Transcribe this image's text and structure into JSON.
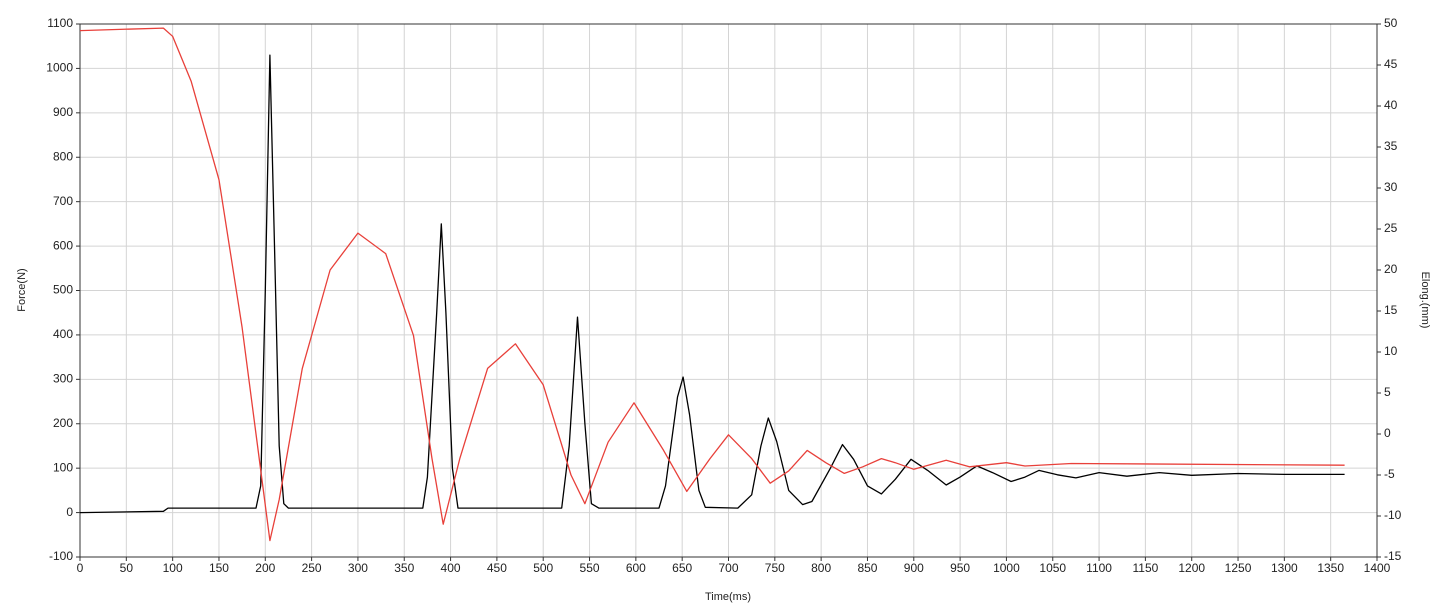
{
  "chart_data": {
    "type": "line",
    "x_label": "Time(ms)",
    "y_label": "Force(N)",
    "y2_label": "Elong.(mm)",
    "xlim": [
      0,
      1400
    ],
    "xticks": [
      0,
      50,
      100,
      150,
      200,
      250,
      300,
      350,
      400,
      450,
      500,
      550,
      600,
      650,
      700,
      750,
      800,
      850,
      900,
      950,
      1000,
      1050,
      1100,
      1150,
      1200,
      1250,
      1300,
      1350,
      1400
    ],
    "ylim": [
      -100,
      1100
    ],
    "yticks": [
      -100,
      0,
      100,
      200,
      300,
      400,
      500,
      600,
      700,
      800,
      900,
      1000,
      1100
    ],
    "y2lim": [
      -15,
      50
    ],
    "y2ticks": [
      -15,
      -10,
      -5,
      0,
      5,
      10,
      15,
      20,
      25,
      30,
      35,
      40,
      45,
      50
    ],
    "grid": true,
    "series": [
      {
        "color": "#000000",
        "x": [
          0,
          90,
          95,
          190,
          195,
          200,
          205,
          210,
          215,
          220,
          225,
          370,
          375,
          385,
          390,
          395,
          402,
          408,
          520,
          528,
          537,
          545,
          552,
          560,
          625,
          632,
          645,
          651,
          658,
          668,
          675,
          710,
          725,
          735,
          743,
          752,
          765,
          780,
          790,
          810,
          823,
          835,
          850,
          865,
          880,
          897,
          915,
          935,
          950,
          968,
          985,
          1005,
          1020,
          1035,
          1055,
          1075,
          1100,
          1130,
          1165,
          1200,
          1250,
          1300,
          1365
        ],
        "values": [
          0,
          3,
          10,
          10,
          60,
          500,
          1030,
          600,
          150,
          20,
          10,
          10,
          80,
          450,
          650,
          450,
          100,
          10,
          10,
          150,
          440,
          200,
          20,
          10,
          10,
          60,
          260,
          305,
          220,
          50,
          12,
          10,
          40,
          150,
          213,
          160,
          50,
          18,
          25,
          100,
          153,
          120,
          60,
          42,
          75,
          120,
          95,
          62,
          80,
          105,
          90,
          70,
          80,
          95,
          85,
          78,
          90,
          82,
          90,
          84,
          88,
          86,
          86
        ]
      },
      {
        "color": "#e8403a",
        "axis": "y2",
        "x": [
          0,
          90,
          100,
          120,
          150,
          175,
          190,
          205,
          215,
          240,
          270,
          300,
          330,
          360,
          380,
          392,
          410,
          440,
          470,
          500,
          530,
          545,
          570,
          598,
          630,
          655,
          680,
          700,
          725,
          745,
          765,
          785,
          805,
          825,
          845,
          865,
          880,
          900,
          935,
          960,
          1000,
          1020,
          1070,
          1365
        ],
        "values": [
          49.2,
          49.5,
          48.5,
          43,
          31,
          13,
          0,
          -13,
          -8,
          8,
          20,
          24.5,
          22,
          12,
          -3,
          -11,
          -3,
          8,
          11,
          6,
          -5,
          -8.5,
          -1,
          3.8,
          -2,
          -7,
          -3,
          -0.1,
          -3,
          -6,
          -4.5,
          -2,
          -3.5,
          -4.8,
          -4,
          -3,
          -3.5,
          -4.3,
          -3.2,
          -4,
          -3.5,
          -3.9,
          -3.6,
          -3.8
        ]
      }
    ]
  }
}
